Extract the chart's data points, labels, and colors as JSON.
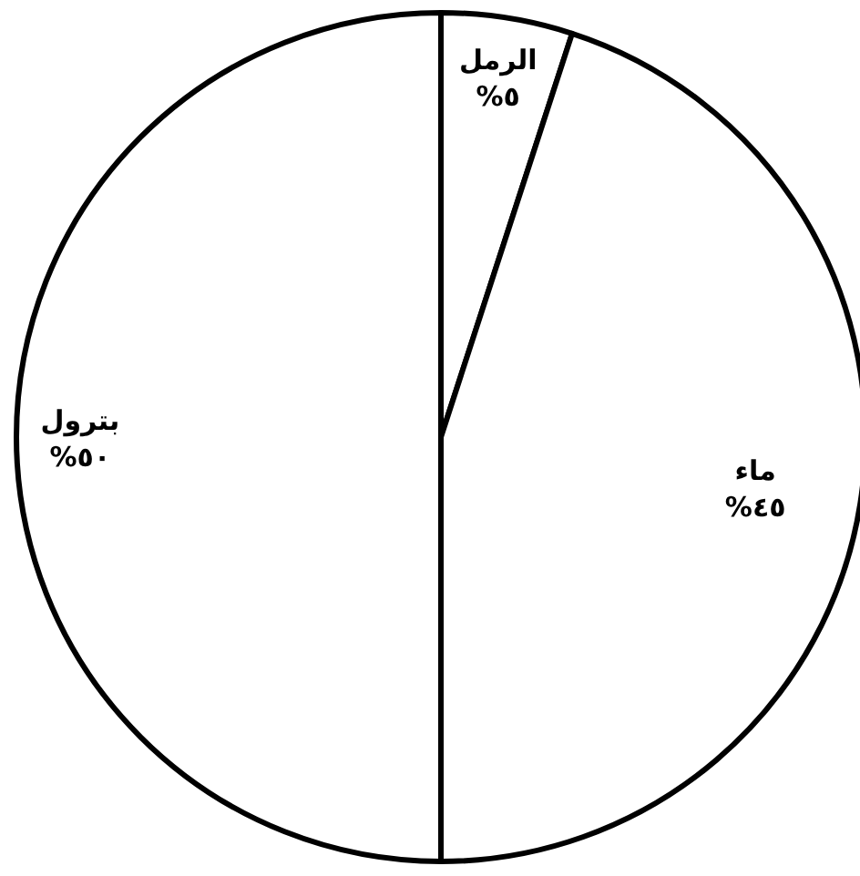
{
  "chart_data": {
    "type": "pie",
    "categories": [
      "الرمل",
      "ماء",
      "بترول"
    ],
    "values": [
      5,
      45,
      50
    ],
    "value_labels": [
      "%٥",
      "%٤٥",
      "%٥٠"
    ],
    "colors": [
      "#ffffff",
      "#ffffff",
      "#ffffff"
    ]
  }
}
